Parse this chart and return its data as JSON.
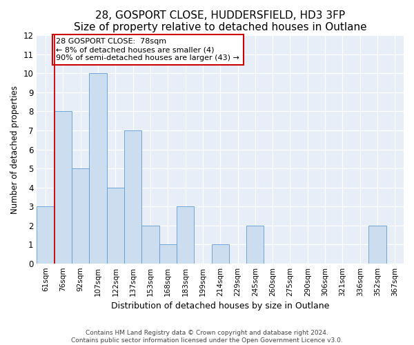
{
  "title1": "28, GOSPORT CLOSE, HUDDERSFIELD, HD3 3FP",
  "title2": "Size of property relative to detached houses in Outlane",
  "xlabel": "Distribution of detached houses by size in Outlane",
  "ylabel": "Number of detached properties",
  "categories": [
    "61sqm",
    "76sqm",
    "92sqm",
    "107sqm",
    "122sqm",
    "137sqm",
    "153sqm",
    "168sqm",
    "183sqm",
    "199sqm",
    "214sqm",
    "229sqm",
    "245sqm",
    "260sqm",
    "275sqm",
    "290sqm",
    "306sqm",
    "321sqm",
    "336sqm",
    "352sqm",
    "367sqm"
  ],
  "values": [
    3,
    8,
    5,
    10,
    4,
    7,
    2,
    1,
    3,
    0,
    1,
    0,
    2,
    0,
    0,
    0,
    0,
    0,
    0,
    2,
    0
  ],
  "bar_color": "#ccddf0",
  "bar_edge_color": "#5b9bd5",
  "ylim": [
    0,
    12
  ],
  "yticks": [
    0,
    1,
    2,
    3,
    4,
    5,
    6,
    7,
    8,
    9,
    10,
    11,
    12
  ],
  "vline_color": "#cc0000",
  "vline_x_index": 1,
  "annotation_text": "28 GOSPORT CLOSE:  78sqm\n← 8% of detached houses are smaller (4)\n90% of semi-detached houses are larger (43) →",
  "annotation_box_color": "#ffffff",
  "annotation_box_edgecolor": "#cc0000",
  "footer1": "Contains HM Land Registry data © Crown copyright and database right 2024.",
  "footer2": "Contains public sector information licensed under the Open Government Licence v3.0.",
  "background_color": "#e8eef8",
  "grid_color": "#ffffff",
  "title1_fontsize": 11,
  "title2_fontsize": 10
}
